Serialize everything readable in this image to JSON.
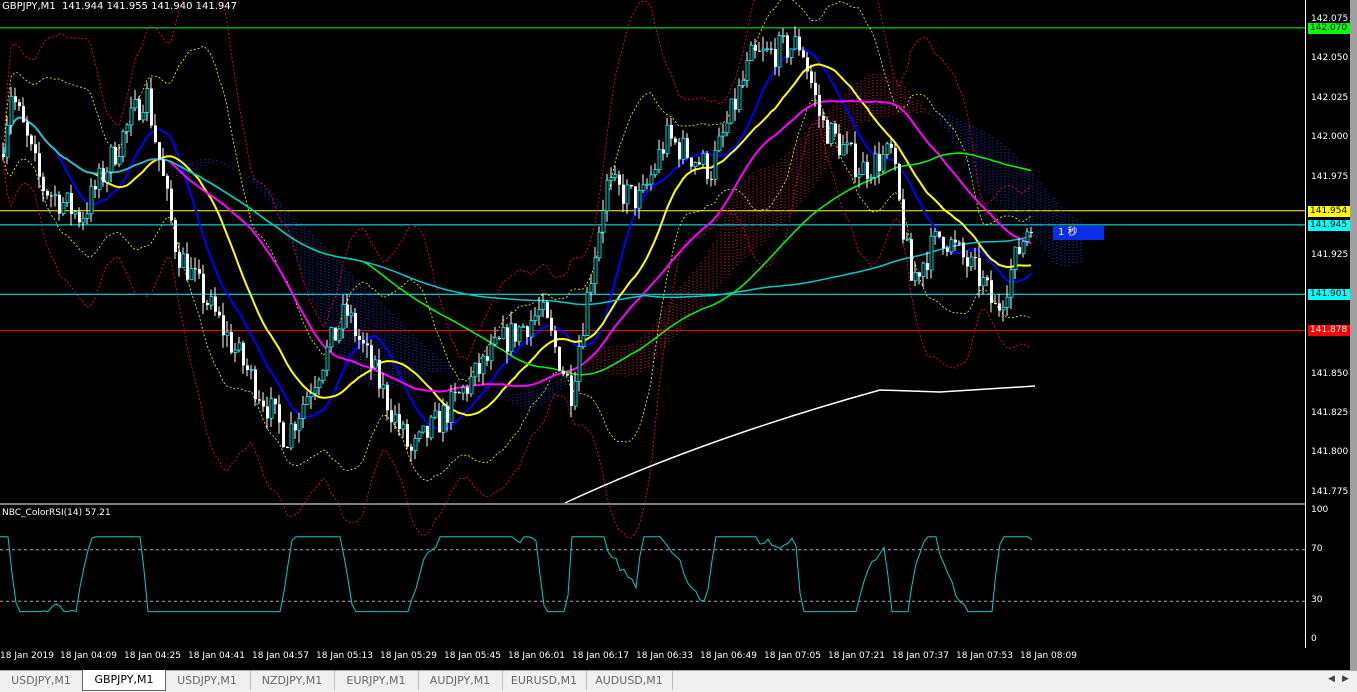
{
  "chart": {
    "header": "GBPJPY,M1  141.944 141.955 141.940 141.947",
    "timer_label": "1 秒",
    "price_ticks": [
      "142.075",
      "142.050",
      "142.025",
      "142.000",
      "141.975",
      "141.925",
      "141.850",
      "141.825",
      "141.800",
      "141.775"
    ],
    "price_levels": [
      {
        "value": "142.070",
        "color": "#00ff00"
      },
      {
        "value": "141.954",
        "color": "#ffff00"
      },
      {
        "value": "141.945",
        "color": "#00ffff"
      },
      {
        "value": "141.901",
        "color": "#00ffff"
      },
      {
        "value": "141.878",
        "color": "#ff0000"
      }
    ],
    "time_labels": [
      "18 Jan 2019",
      "18 Jan 04:09",
      "18 Jan 04:25",
      "18 Jan 04:41",
      "18 Jan 04:57",
      "18 Jan 05:13",
      "18 Jan 05:29",
      "18 Jan 05:45",
      "18 Jan 06:01",
      "18 Jan 06:17",
      "18 Jan 06:33",
      "18 Jan 06:49",
      "18 Jan 07:05",
      "18 Jan 07:21",
      "18 Jan 07:37",
      "18 Jan 07:53",
      "18 Jan 08:09"
    ],
    "candle_color": "#00ffff",
    "background": "#000000"
  },
  "rsi": {
    "label": "NBC_ColorRSI(14) 57.21",
    "ticks": [
      "100",
      "70",
      "30",
      "0"
    ],
    "levels": [
      70,
      30
    ]
  },
  "tabs": [
    {
      "label": "USDJPY,M1",
      "active": false
    },
    {
      "label": "GBPJPY,M1",
      "active": true
    },
    {
      "label": "USDJPY,M1",
      "active": false
    },
    {
      "label": "NZDJPY,M1",
      "active": false
    },
    {
      "label": "EURJPY,M1",
      "active": false
    },
    {
      "label": "AUDJPY,M1",
      "active": false
    },
    {
      "label": "EURUSD,M1",
      "active": false
    },
    {
      "label": "AUDUSD,M1",
      "active": false
    }
  ]
}
